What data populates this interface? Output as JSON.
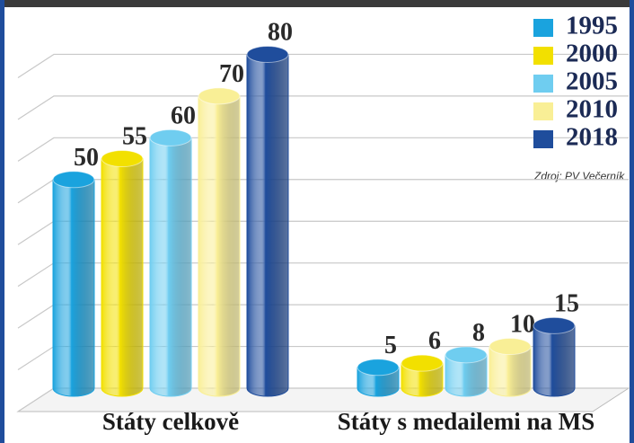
{
  "chart_data": {
    "type": "bar",
    "annotation": "Zdroj: PV Večerník",
    "categories": [
      "Státy celkově",
      "Státy s medailemi na MS"
    ],
    "series": [
      {
        "name": "1995",
        "color": "#1aa3de",
        "values": [
          50,
          5
        ]
      },
      {
        "name": "2000",
        "color": "#f2e000",
        "values": [
          55,
          6
        ]
      },
      {
        "name": "2005",
        "color": "#6fcdf0",
        "values": [
          60,
          8
        ]
      },
      {
        "name": "2010",
        "color": "#f9ef96",
        "values": [
          70,
          10
        ]
      },
      {
        "name": "2018",
        "color": "#1f4d9c",
        "values": [
          80,
          15
        ]
      }
    ],
    "ylim": [
      0,
      90
    ],
    "yticks": [
      0,
      10,
      20,
      30,
      40,
      50,
      60,
      70,
      80
    ],
    "grid": true
  }
}
